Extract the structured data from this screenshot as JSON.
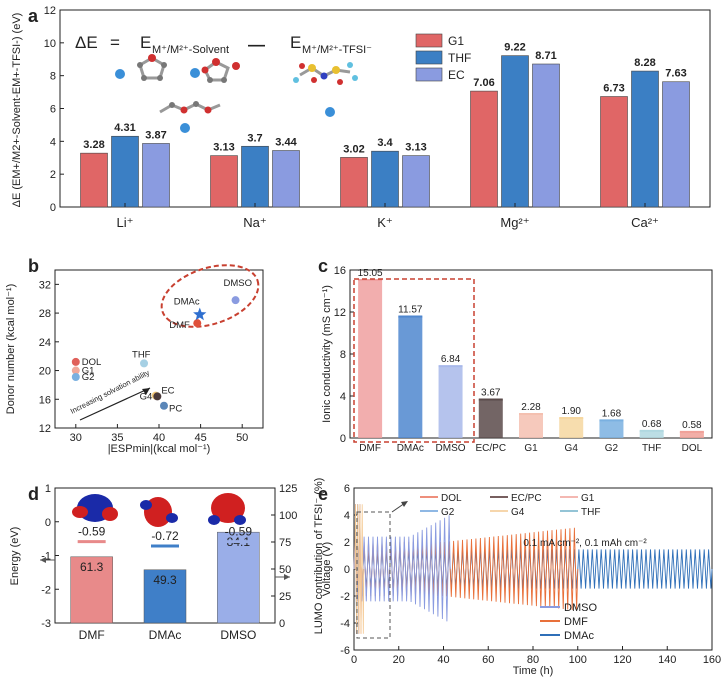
{
  "chart_data": [
    {
      "panel": "a",
      "type": "bar",
      "panel_label": "a",
      "equation": {
        "lhs": "ΔE",
        "eq": "=",
        "term1": "E",
        "sub1": "M⁺/M²⁺-Solvent",
        "minus": "—",
        "term2": "E",
        "sub2": "M⁺/M²⁺-TFSI⁻"
      },
      "ylabel": "ΔE (E_M⁺/M²⁺-Solvent - E_M⁺-TFSI⁻) (eV)",
      "ylabel_text": "ΔE (EM+/M2+-Solvent-EM+-TFSI-) (eV)",
      "ylim": [
        0,
        12
      ],
      "yticks": [
        "0",
        "2",
        "4",
        "6",
        "8",
        "10",
        "12"
      ],
      "categories": [
        "Li⁺",
        "Na⁺",
        "K⁺",
        "Mg²⁺",
        "Ca²⁺"
      ],
      "series": [
        {
          "name": "G1",
          "color": "#e06666",
          "values": [
            3.28,
            3.13,
            3.02,
            7.06,
            6.73
          ],
          "labels": [
            "3.28",
            "3.13",
            "3.02",
            "7.06",
            "6.73"
          ]
        },
        {
          "name": "THF",
          "color": "#3b7fc4",
          "values": [
            4.31,
            3.7,
            3.4,
            9.22,
            8.28
          ],
          "labels": [
            "4.31",
            "3.7",
            "3.4",
            "9.22",
            "8.28"
          ]
        },
        {
          "name": "EC",
          "color": "#8a9be0",
          "values": [
            3.87,
            3.44,
            3.13,
            8.71,
            7.63
          ],
          "labels": [
            "3.87",
            "3.44",
            "3.13",
            "8.71",
            "7.63"
          ]
        }
      ]
    },
    {
      "panel": "b",
      "type": "scatter",
      "panel_label": "b",
      "xlabel": "|ESPmin|(kcal mol⁻¹)",
      "ylabel": "Donor number (kcal mol⁻¹)",
      "xlim": [
        27.5,
        52.5
      ],
      "ylim": [
        12,
        34
      ],
      "xticks": [
        "30",
        "35",
        "40",
        "45",
        "50"
      ],
      "yticks": [
        "12",
        "16",
        "20",
        "24",
        "28",
        "32"
      ],
      "arrow_text": "Increasing solvation ability",
      "points": [
        {
          "name": "DOL",
          "x": 30.0,
          "y": 21.2,
          "color": "#e0605a"
        },
        {
          "name": "G1",
          "x": 30.0,
          "y": 20.0,
          "color": "#f0a89a"
        },
        {
          "name": "G2",
          "x": 30.0,
          "y": 19.1,
          "color": "#7ab0e0"
        },
        {
          "name": "THF",
          "x": 38.2,
          "y": 21.0,
          "color": "#a6d0e4"
        },
        {
          "name": "G4",
          "x": 39.6,
          "y": 16.5,
          "color": "#f2c97a"
        },
        {
          "name": "EC",
          "x": 39.8,
          "y": 16.4,
          "color": "#4a3a3a"
        },
        {
          "name": "PC",
          "x": 40.6,
          "y": 15.1,
          "color": "#5a86b8"
        },
        {
          "name": "DMF",
          "x": 44.6,
          "y": 26.6,
          "color": "#e0503a"
        },
        {
          "name": "DMAc",
          "x": 44.9,
          "y": 27.8,
          "color": "#2f6fcf"
        },
        {
          "name": "DMSO",
          "x": 49.2,
          "y": 29.8,
          "color": "#8a9be0"
        }
      ]
    },
    {
      "panel": "c",
      "type": "bar",
      "panel_label": "c",
      "ylabel": "Ionic conductivity (mS cm⁻¹)",
      "ylim": [
        0,
        16
      ],
      "yticks": [
        "0",
        "4",
        "8",
        "12",
        "16"
      ],
      "categories": [
        "DMF",
        "DMAc",
        "DMSO",
        "EC/PC",
        "G1",
        "G4",
        "G2",
        "THF",
        "DOL"
      ],
      "values": [
        15.05,
        11.57,
        6.84,
        3.67,
        2.28,
        1.9,
        1.68,
        0.68,
        0.58
      ],
      "labels": [
        "15.05",
        "11.57",
        "6.84",
        "3.67",
        "2.28",
        "1.90",
        "1.68",
        "0.68",
        "0.58"
      ],
      "colors": [
        "#f0a0a0",
        "#4f87cf",
        "#a8b8ea",
        "#5a4a4a",
        "#f4c0b0",
        "#f6d7a0",
        "#7ab0e0",
        "#b0d8e0",
        "#f0a098"
      ]
    },
    {
      "panel": "d",
      "type": "bar",
      "panel_label": "d",
      "ylabel": "Energy (eV)",
      "ylabel_right": "LUMO contribution of TFSI⁻ (%)",
      "ylim": [
        -3,
        1
      ],
      "yticks": [
        "-3",
        "-2",
        "-1",
        "0",
        "1"
      ],
      "ylim_right": [
        0,
        125
      ],
      "yticks_right": [
        "0",
        "25",
        "50",
        "75",
        "100",
        "125"
      ],
      "categories": [
        "DMF",
        "DMAc",
        "DMSO"
      ],
      "lumo_energies": [
        -0.59,
        -0.72,
        -0.59
      ],
      "lumo_labels": [
        "-0.59",
        "-0.72",
        "-0.59"
      ],
      "contributions": [
        61.3,
        49.3,
        84.1
      ],
      "contribution_labels": [
        "61.3",
        "49.3",
        "84.1"
      ]
    },
    {
      "panel": "e",
      "type": "line",
      "panel_label": "e",
      "xlabel": "Time (h)",
      "ylabel": "Voltage (V)",
      "xlim": [
        0,
        160
      ],
      "ylim": [
        -6,
        6
      ],
      "xticks": [
        "0",
        "20",
        "40",
        "60",
        "80",
        "100",
        "120",
        "140",
        "160"
      ],
      "yticks": [
        "-6",
        "-4",
        "-2",
        "0",
        "2",
        "4",
        "6"
      ],
      "annotation": "0.1 mA cm⁻², 0.1 mAh cm⁻²",
      "legend_top": [
        "DOL",
        "EC/PC",
        "G1",
        "G2",
        "G4",
        "THF"
      ],
      "legend_top_colors": [
        "#e86a50",
        "#4a2a2a",
        "#f0a098",
        "#6aa0dc",
        "#f4c890",
        "#70b0c8"
      ],
      "legend_bottom": [
        "DMSO",
        "DMF",
        "DMAc"
      ],
      "legend_bottom_colors": [
        "#8a9be0",
        "#e8703a",
        "#2f6fb8"
      ],
      "series": [
        {
          "name": "DMAc",
          "t_end": 160,
          "amp": 1.45
        },
        {
          "name": "DMF",
          "t_end": 100,
          "amp": 2.0
        },
        {
          "name": "DMSO",
          "t_end": 43,
          "amp": 2.4
        }
      ]
    }
  ]
}
